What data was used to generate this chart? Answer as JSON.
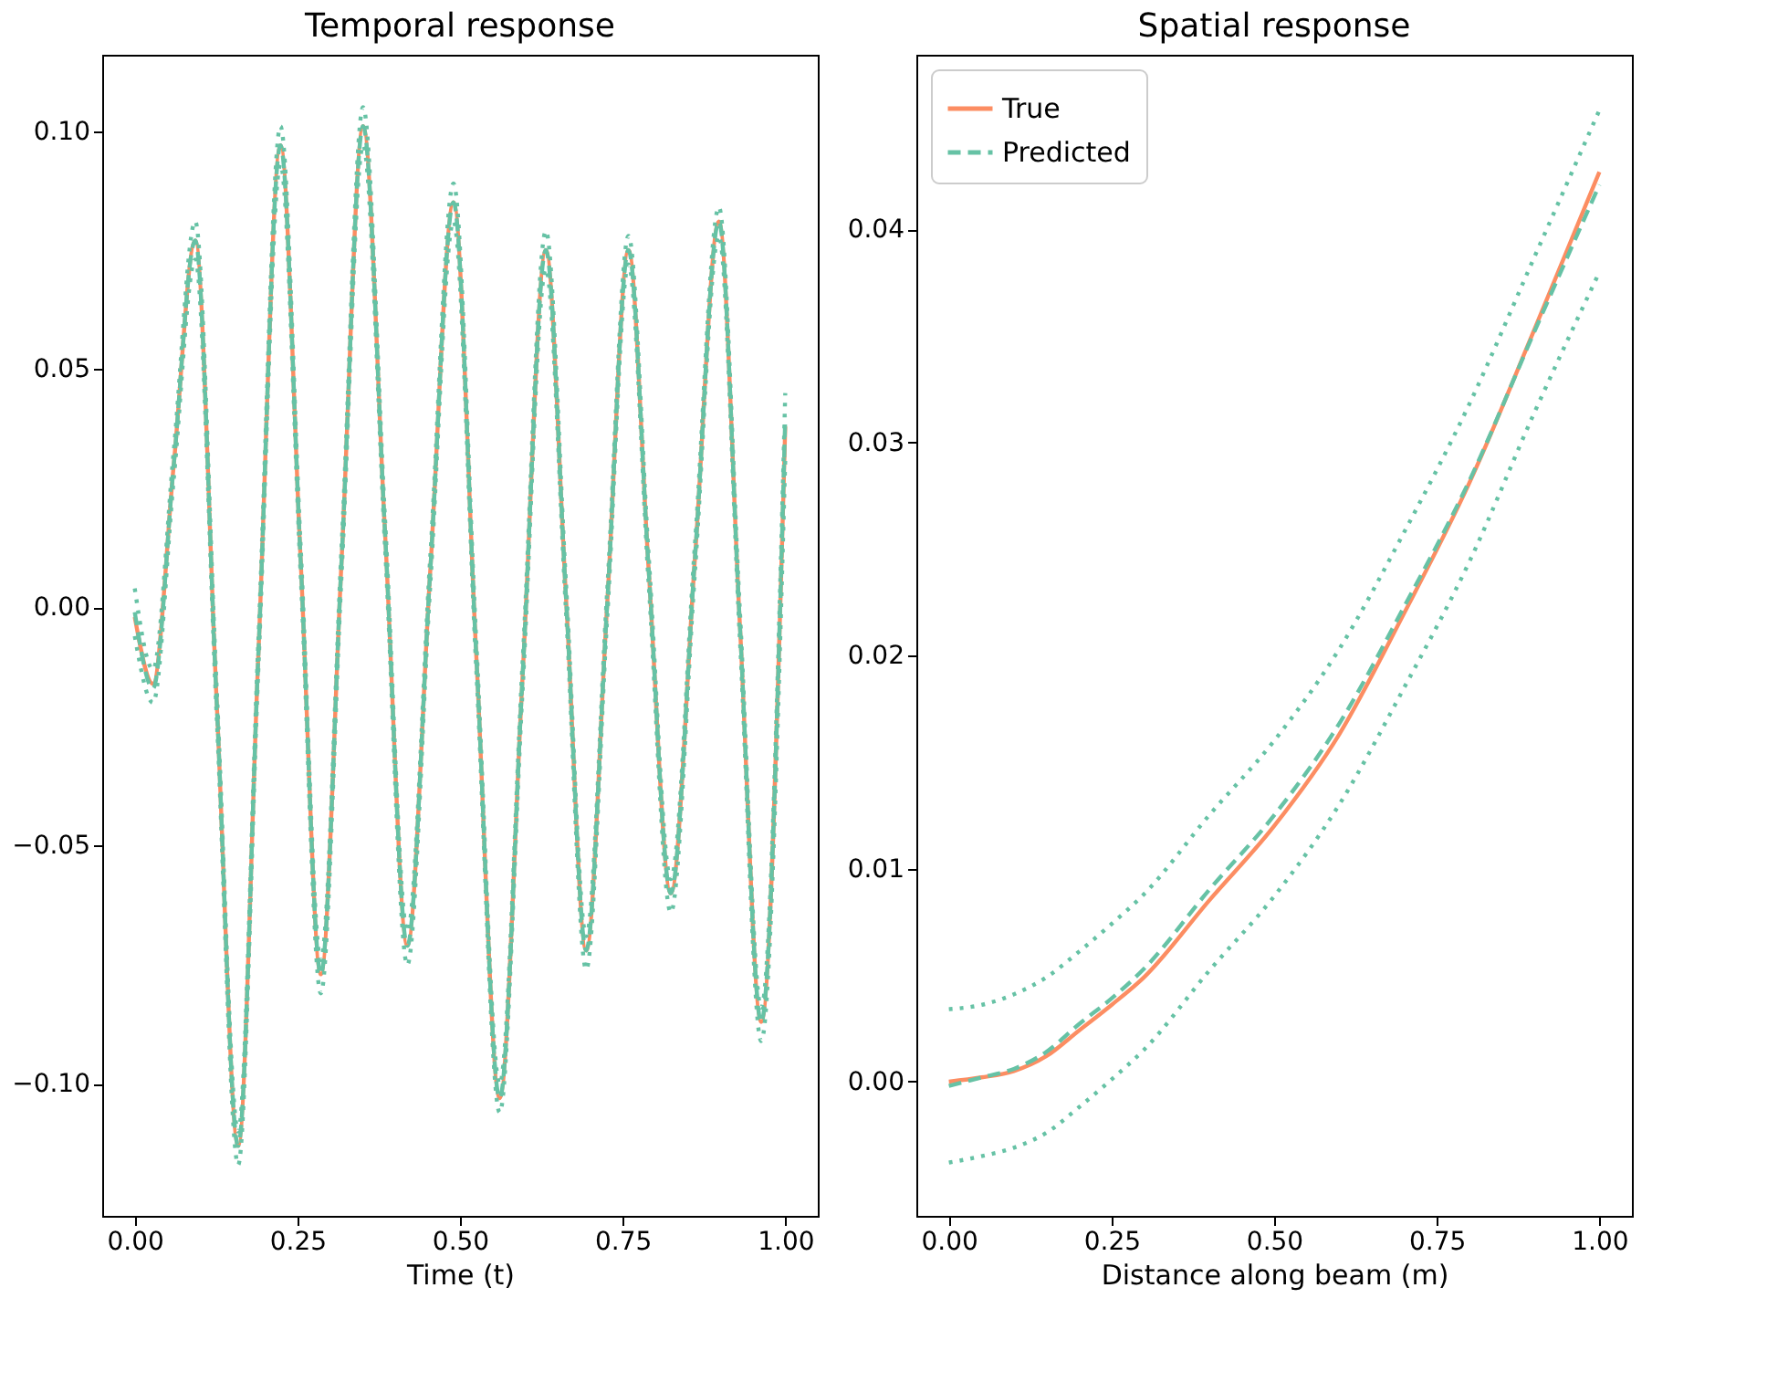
{
  "chart_data": [
    {
      "type": "line",
      "title": "Temporal response",
      "xlabel": "Time (t)",
      "grid": false,
      "legend": false,
      "marker": "none",
      "xlim": [
        -0.05,
        1.05
      ],
      "ylim": [
        -0.1277,
        0.116
      ],
      "xticks": [
        {
          "value": 0,
          "label": "0.00"
        },
        {
          "value": 0.25,
          "label": "0.25"
        },
        {
          "value": 0.5,
          "label": "0.50"
        },
        {
          "value": 0.75,
          "label": "0.75"
        },
        {
          "value": 1,
          "label": "1.00"
        }
      ],
      "yticks": [
        {
          "value": -0.1,
          "label": "−0.10"
        },
        {
          "value": -0.05,
          "label": "−0.05"
        },
        {
          "value": 0,
          "label": "0.00"
        },
        {
          "value": 0.05,
          "label": "0.05"
        },
        {
          "value": 0.1,
          "label": "0.10"
        }
      ],
      "x": [
        0,
        0.028,
        0.06,
        0.093,
        0.126,
        0.159,
        0.19,
        0.224,
        0.255,
        0.286,
        0.318,
        0.351,
        0.385,
        0.419,
        0.454,
        0.49,
        0.525,
        0.561,
        0.596,
        0.632,
        0.663,
        0.694,
        0.726,
        0.759,
        0.79,
        0.824,
        0.861,
        0.898,
        0.93,
        0.963,
        1.0
      ],
      "series": [
        {
          "color": "#fc8d62",
          "line_style": "solid",
          "values": [
            -0.002,
            -0.016,
            0.03,
            0.077,
            -0.02,
            -0.113,
            -0.01,
            0.097,
            0.01,
            -0.077,
            0.01,
            0.101,
            0.015,
            -0.071,
            0.007,
            0.085,
            -0.01,
            -0.103,
            -0.015,
            0.075,
            0.002,
            -0.072,
            0.0,
            0.075,
            0.008,
            -0.06,
            0.01,
            0.081,
            -0.003,
            -0.087,
            0.038
          ]
        },
        {
          "color": "#66c2a5",
          "line_style": "dashed",
          "values": [
            -0.001,
            -0.017,
            0.03,
            0.077,
            -0.02,
            -0.113,
            -0.01,
            0.097,
            0.01,
            -0.077,
            0.01,
            0.101,
            0.015,
            -0.071,
            0.007,
            0.085,
            -0.01,
            -0.103,
            -0.015,
            0.075,
            0.002,
            -0.072,
            0.0,
            0.075,
            0.008,
            -0.06,
            0.01,
            0.081,
            -0.003,
            -0.087,
            0.04
          ]
        },
        {
          "color": "#66c2a5",
          "line_style": "dotted",
          "values": [
            0.004,
            -0.013,
            0.033,
            0.081,
            -0.017,
            -0.11,
            -0.007,
            0.101,
            0.013,
            -0.074,
            0.013,
            0.105,
            0.018,
            -0.068,
            0.01,
            0.089,
            -0.007,
            -0.1,
            -0.012,
            0.079,
            0.005,
            -0.069,
            0.003,
            0.078,
            0.011,
            -0.057,
            0.013,
            0.084,
            0.0,
            -0.084,
            0.045
          ]
        },
        {
          "color": "#66c2a5",
          "line_style": "dotted",
          "values": [
            -0.006,
            -0.02,
            0.027,
            0.073,
            -0.023,
            -0.117,
            -0.013,
            0.093,
            0.007,
            -0.081,
            0.007,
            0.097,
            0.012,
            -0.075,
            0.004,
            0.081,
            -0.013,
            -0.106,
            -0.018,
            0.071,
            -0.001,
            -0.076,
            -0.003,
            0.072,
            0.005,
            -0.064,
            0.007,
            0.078,
            -0.006,
            -0.091,
            0.031
          ]
        }
      ]
    },
    {
      "type": "line",
      "title": "Spatial response",
      "xlabel": "Distance along beam (m)",
      "grid": false,
      "legend": "top left",
      "marker": "none",
      "xlim": [
        -0.05,
        1.05
      ],
      "ylim": [
        -0.0063,
        0.0482
      ],
      "xticks": [
        {
          "value": 0,
          "label": "0.00"
        },
        {
          "value": 0.25,
          "label": "0.25"
        },
        {
          "value": 0.5,
          "label": "0.50"
        },
        {
          "value": 0.75,
          "label": "0.75"
        },
        {
          "value": 1,
          "label": "1.00"
        }
      ],
      "yticks": [
        {
          "value": 0,
          "label": "0.00"
        },
        {
          "value": 0.01,
          "label": "0.01"
        },
        {
          "value": 0.02,
          "label": "0.02"
        },
        {
          "value": 0.03,
          "label": "0.03"
        },
        {
          "value": 0.04,
          "label": "0.04"
        }
      ],
      "x": [
        0,
        0.05,
        0.1,
        0.15,
        0.2,
        0.25,
        0.3,
        0.4,
        0.5,
        0.6,
        0.7,
        0.8,
        0.9,
        1.0
      ],
      "series": [
        {
          "name": "True",
          "color": "#fc8d62",
          "line_style": "solid",
          "values": [
            0.0,
            0.0002,
            0.0005,
            0.0012,
            0.0024,
            0.0036,
            0.0049,
            0.0085,
            0.012,
            0.0163,
            0.022,
            0.0281,
            0.0353,
            0.0427
          ]
        },
        {
          "name": "Predicted",
          "color": "#66c2a5",
          "line_style": "dashed",
          "values": [
            -0.0002,
            0.0002,
            0.0006,
            0.0014,
            0.0027,
            0.0039,
            0.0053,
            0.009,
            0.0125,
            0.0168,
            0.0223,
            0.0282,
            0.0352,
            0.0421
          ]
        },
        {
          "color": "#66c2a5",
          "line_style": "dotted",
          "values": [
            0.0034,
            0.0036,
            0.0041,
            0.0049,
            0.0061,
            0.0074,
            0.0088,
            0.0125,
            0.016,
            0.0203,
            0.0258,
            0.0318,
            0.0387,
            0.0456
          ]
        },
        {
          "color": "#66c2a5",
          "line_style": "dotted",
          "values": [
            -0.0038,
            -0.0035,
            -0.0031,
            -0.0024,
            -0.0012,
            0.0001,
            0.0015,
            0.0052,
            0.0087,
            0.013,
            0.0185,
            0.0244,
            0.0314,
            0.038
          ]
        }
      ]
    }
  ]
}
